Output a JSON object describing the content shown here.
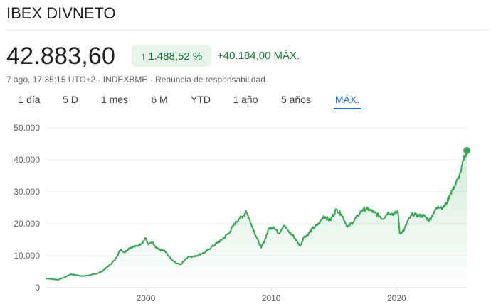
{
  "header": {
    "title": "IBEX DIVNETO",
    "price": "42.883,60",
    "percent_change": "1.488,52 %",
    "abs_change": "+40.184,00",
    "period_suffix": "MÁX.",
    "meta": "7 ago, 17:35:15 UTC+2 · INDEXBME · Renuncia de responsabilidad"
  },
  "tabs": [
    {
      "label": "1 día"
    },
    {
      "label": "5 D"
    },
    {
      "label": "1 mes"
    },
    {
      "label": "6 M"
    },
    {
      "label": "YTD"
    },
    {
      "label": "1 año"
    },
    {
      "label": "5 años"
    },
    {
      "label": "MÁX."
    }
  ],
  "active_tab": 7,
  "colors": {
    "line": "#34a853",
    "positive": "#137333",
    "badge_bg": "#e6f4ea",
    "active_tab": "#1a73e8"
  },
  "chart_data": {
    "type": "area",
    "title": "",
    "xlabel": "",
    "ylabel": "",
    "ylim": [
      0,
      50000
    ],
    "xlim": [
      1992.0,
      2025.6
    ],
    "y_ticks": [
      0,
      10000,
      20000,
      30000,
      40000,
      50000
    ],
    "y_tick_labels": [
      "0",
      "10.000",
      "20.000",
      "30.000",
      "40.000",
      "50.000"
    ],
    "x_ticks": [
      2000,
      2010,
      2020
    ],
    "x_tick_labels": [
      "2000",
      "2010",
      "2020"
    ],
    "grid": "horizontal",
    "series": [
      {
        "x": [
          1992.0,
          1992.5,
          1993.0,
          1993.5,
          1994.0,
          1994.5,
          1995.0,
          1995.5,
          1996.0,
          1996.5,
          1997.0,
          1997.5,
          1998.0,
          1998.3,
          1998.7,
          1999.0,
          1999.3,
          1999.7,
          2000.0,
          2000.2,
          2000.5,
          2000.8,
          2001.0,
          2001.5,
          2002.0,
          2002.4,
          2002.8,
          2003.0,
          2003.4,
          2003.8,
          2004.2,
          2004.7,
          2005.2,
          2005.7,
          2006.2,
          2006.7,
          2007.0,
          2007.4,
          2007.8,
          2008.0,
          2008.4,
          2008.8,
          2009.2,
          2009.5,
          2009.8,
          2010.2,
          2010.6,
          2011.0,
          2011.4,
          2011.8,
          2012.3,
          2012.6,
          2012.9,
          2013.3,
          2013.8,
          2014.2,
          2014.7,
          2015.2,
          2015.6,
          2016.1,
          2016.5,
          2016.9,
          2017.3,
          2017.8,
          2018.2,
          2018.6,
          2018.9,
          2019.3,
          2019.8,
          2020.1,
          2020.25,
          2020.6,
          2020.9,
          2021.3,
          2021.8,
          2022.2,
          2022.6,
          2022.9,
          2023.3,
          2023.7,
          2024.0,
          2024.3,
          2024.6,
          2024.9,
          2025.1,
          2025.35,
          2025.6
        ],
        "values": [
          2900,
          2700,
          2500,
          3200,
          4200,
          3900,
          3600,
          3900,
          4300,
          5100,
          6700,
          8500,
          12000,
          11000,
          12500,
          12800,
          13000,
          14000,
          15500,
          13500,
          14200,
          12500,
          12000,
          11500,
          9000,
          7800,
          7200,
          8200,
          9800,
          9700,
          10300,
          11000,
          12600,
          14000,
          15500,
          17500,
          19500,
          21500,
          22500,
          24000,
          20000,
          16000,
          12500,
          15000,
          18500,
          19000,
          17000,
          19500,
          17500,
          16000,
          13000,
          15800,
          16500,
          18500,
          20000,
          22500,
          21000,
          24500,
          23000,
          19000,
          20500,
          22500,
          24500,
          24500,
          23500,
          22500,
          21500,
          23500,
          23000,
          24000,
          17000,
          18000,
          21000,
          23000,
          22500,
          22500,
          21000,
          23000,
          25500,
          25000,
          26500,
          29500,
          31500,
          34000,
          36000,
          40000,
          42883
        ]
      }
    ]
  }
}
